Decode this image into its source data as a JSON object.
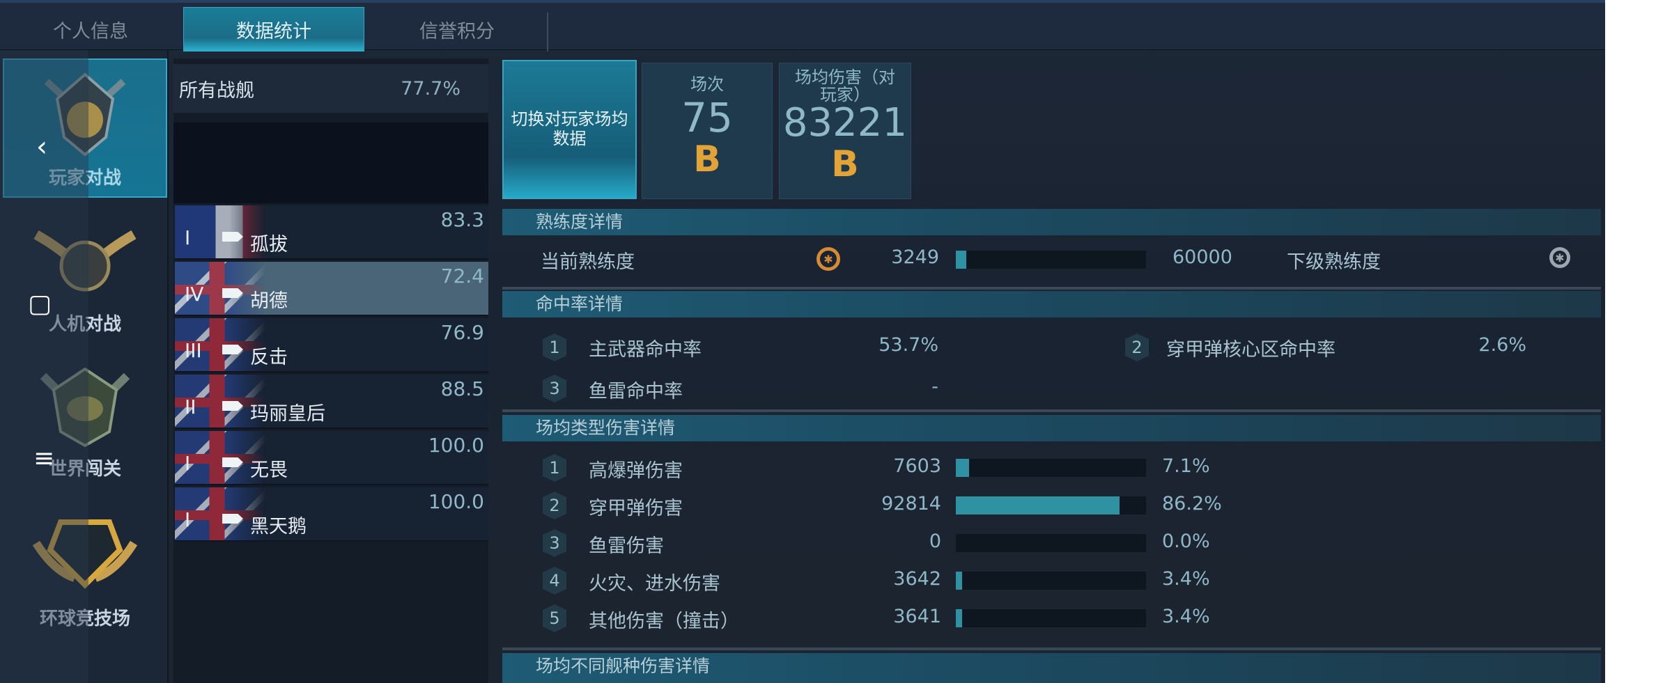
{
  "tabs": [
    {
      "label": "个人信息"
    },
    {
      "label": "数据统计",
      "active": true
    },
    {
      "label": "信誉积分"
    }
  ],
  "sidebar": {
    "items": [
      {
        "label": "玩家对战",
        "active": true
      },
      {
        "label": "人机对战"
      },
      {
        "label": "世界闯关"
      },
      {
        "label": "环球竞技场"
      }
    ]
  },
  "nav": {
    "back": "‹",
    "home": "▢",
    "menu": "≡"
  },
  "ship_list": {
    "all": {
      "label": "所有战舰",
      "value": "77.7%"
    },
    "ships": [
      {
        "tier": "I",
        "name": "孤拔",
        "value": "83.3",
        "nation": "france"
      },
      {
        "tier": "IV",
        "name": "胡德",
        "value": "72.4",
        "nation": "uk",
        "selected": true
      },
      {
        "tier": "III",
        "name": "反击",
        "value": "76.9",
        "nation": "uk"
      },
      {
        "tier": "II",
        "name": "玛丽皇后",
        "value": "88.5",
        "nation": "uk"
      },
      {
        "tier": "I",
        "name": "无畏",
        "value": "100.0",
        "nation": "uk"
      },
      {
        "tier": "I",
        "name": "黑天鹅",
        "value": "100.0",
        "nation": "uk"
      }
    ]
  },
  "summary": {
    "switch_button": "切换对玩家场均数据",
    "battles": {
      "label": "场次",
      "value": "75",
      "grade": "B"
    },
    "avg_damage": {
      "label": "场均伤害（对玩家）",
      "value": "83221",
      "grade": "B"
    }
  },
  "proficiency": {
    "title": "熟练度详情",
    "current_label": "当前熟练度",
    "current": "3249",
    "next": "60000",
    "next_label": "下级熟练度",
    "progress": 0.054,
    "icon_current": "ship-wheel-gold-icon",
    "icon_next": "ship-wheel-silver-icon"
  },
  "hit_rate": {
    "title": "命中率详情",
    "items": [
      {
        "n": "1",
        "label": "主武器命中率",
        "value": "53.7%"
      },
      {
        "n": "2",
        "label": "穿甲弹核心区命中率",
        "value": "2.6%"
      },
      {
        "n": "3",
        "label": "鱼雷命中率",
        "value": "-"
      }
    ]
  },
  "damage_types": {
    "title": "场均类型伤害详情",
    "items": [
      {
        "n": "1",
        "label": "高爆弹伤害",
        "value": "7603",
        "pct": "7.1%",
        "fraction": 0.071
      },
      {
        "n": "2",
        "label": "穿甲弹伤害",
        "value": "92814",
        "pct": "86.2%",
        "fraction": 0.862
      },
      {
        "n": "3",
        "label": "鱼雷伤害",
        "value": "0",
        "pct": "0.0%",
        "fraction": 0
      },
      {
        "n": "4",
        "label": "火灾、进水伤害",
        "value": "3642",
        "pct": "3.4%",
        "fraction": 0.034
      },
      {
        "n": "5",
        "label": "其他伤害（撞击）",
        "value": "3641",
        "pct": "3.4%",
        "fraction": 0.034
      }
    ]
  },
  "ship_type_damage": {
    "title": "场均不同舰种伤害详情"
  },
  "colors": {
    "accent": "#2e92a3",
    "grade": "#e3a336",
    "active_tab": "#1b7d99"
  }
}
